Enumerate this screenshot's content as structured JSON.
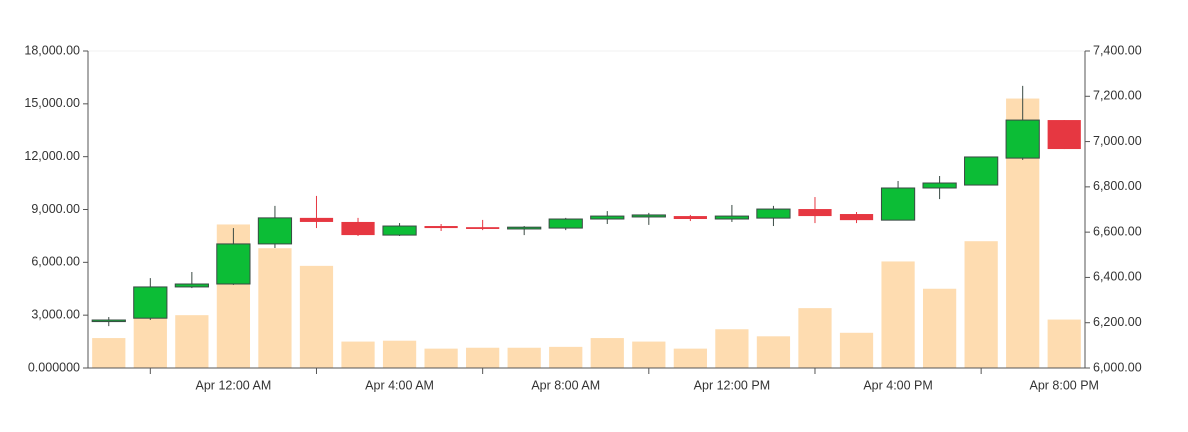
{
  "chart_data": {
    "type": "candlestick",
    "categories": [
      null,
      null,
      null,
      "Apr 12:00 AM",
      null,
      null,
      null,
      "Apr 4:00 AM",
      null,
      null,
      null,
      "Apr 8:00 AM",
      null,
      null,
      null,
      "Apr 12:00 PM",
      null,
      null,
      null,
      "Apr 4:00 PM",
      null,
      null,
      null,
      "Apr 8:00 PM"
    ],
    "volume": {
      "values": [
        1700,
        4200,
        3000,
        8150,
        6800,
        5800,
        1500,
        1550,
        1100,
        1150,
        1150,
        1200,
        1700,
        1500,
        1100,
        2200,
        1800,
        3400,
        2000,
        6050,
        4500,
        7200,
        15300,
        2750
      ],
      "color": "#fedcb0"
    },
    "ohlc": {
      "axis": "y2",
      "open": [
        6205,
        6220,
        6358,
        6371,
        6548,
        6663,
        6645,
        6587,
        6627,
        6622,
        6614,
        6618,
        6658,
        6667,
        6671,
        6658,
        6662,
        6702,
        6680,
        6653,
        6795,
        6808,
        6927,
        7095
      ],
      "high": [
        6225,
        6397,
        6424,
        6618,
        6716,
        6760,
        6663,
        6640,
        6636,
        6654,
        6627,
        6663,
        6693,
        6685,
        6676,
        6720,
        6716,
        6755,
        6689,
        6826,
        6848,
        6932,
        7246,
        7095
      ],
      "low": [
        6185,
        6212,
        6353,
        6367,
        6530,
        6618,
        6583,
        6583,
        6605,
        6609,
        6587,
        6609,
        6636,
        6632,
        6649,
        6645,
        6627,
        6640,
        6640,
        6653,
        6746,
        6808,
        6919,
        6967
      ],
      "close": [
        6212,
        6358,
        6371,
        6548,
        6663,
        6645,
        6587,
        6627,
        6618,
        6614,
        6622,
        6658,
        6671,
        6676,
        6658,
        6671,
        6702,
        6671,
        6653,
        6795,
        6817,
        6932,
        7095,
        6967
      ],
      "up_color": "#0cbd36",
      "down_color": "#e63741"
    },
    "ylim": [
      0,
      18000
    ],
    "yticks": [
      {
        "value": 0,
        "label": "0.000000"
      },
      {
        "value": 3000,
        "label": "3,000.00"
      },
      {
        "value": 6000,
        "label": "6,000.00"
      },
      {
        "value": 9000,
        "label": "9,000.00"
      },
      {
        "value": 12000,
        "label": "12,000.00"
      },
      {
        "value": 15000,
        "label": "15,000.00"
      },
      {
        "value": 18000,
        "label": "18,000.00"
      }
    ],
    "y2lim": [
      6000,
      7400
    ],
    "y2ticks": [
      {
        "value": 6000,
        "label": "6,000.00"
      },
      {
        "value": 6200,
        "label": "6,200.00"
      },
      {
        "value": 6400,
        "label": "6,400.00"
      },
      {
        "value": 6600,
        "label": "6,600.00"
      },
      {
        "value": 6800,
        "label": "6,800.00"
      },
      {
        "value": 7000,
        "label": "7,000.00"
      },
      {
        "value": 7200,
        "label": "7,200.00"
      },
      {
        "value": 7400,
        "label": "7,400.00"
      }
    ]
  }
}
